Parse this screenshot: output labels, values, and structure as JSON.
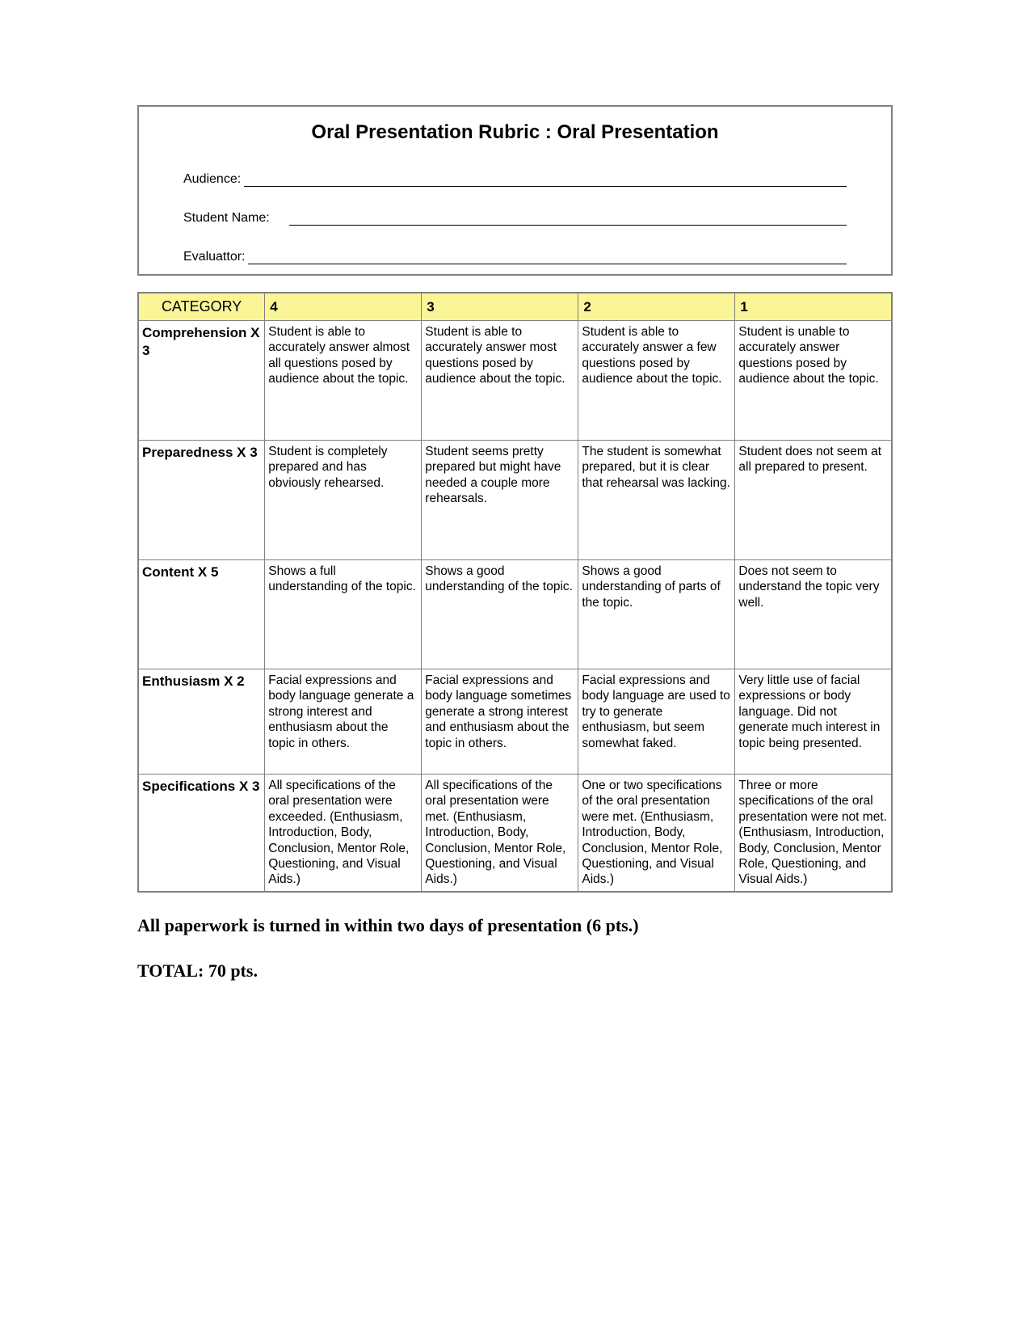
{
  "title": "Oral Presentation Rubric : Oral Presentation",
  "fields": {
    "audience": "Audience:",
    "studentName": "Student Name:",
    "evaluator": "Evaluattor:"
  },
  "table": {
    "headers": {
      "category": "CATEGORY",
      "c4": "4",
      "c3": "3",
      "c2": "2",
      "c1": "1"
    },
    "rows": [
      {
        "category": "Comprehension X 3",
        "c4": "Student is able to accurately answer almost all questions posed by audience about the topic.",
        "c3": "Student is able to accurately answer most questions posed by audience about the topic.",
        "c2": "Student is able to accurately answer a few questions posed by audience about the topic.",
        "c1": "Student is unable to accurately answer questions posed by audience  about the topic.",
        "rowClass": "row-tall"
      },
      {
        "category": "Preparedness X 3",
        "c4": "Student is completely prepared and has obviously rehearsed.",
        "c3": "Student seems pretty prepared but might have needed a couple more rehearsals.",
        "c2": "The student is somewhat prepared, but it is clear that rehearsal was lacking.",
        "c1": "Student does not seem at all prepared to present.",
        "rowClass": "row-tall"
      },
      {
        "category": "Content\nX 5",
        "c4": "Shows a full understanding of the topic.",
        "c3": "Shows a good understanding of the topic.",
        "c2": "Shows a good understanding of parts of the topic.",
        "c1": "Does not seem to understand the topic very well.",
        "rowClass": "row-med"
      },
      {
        "category": "Enthusiasm X 2",
        "c4": "Facial expressions and body language generate a strong interest and enthusiasm about the topic in others.",
        "c3": "Facial expressions and body language sometimes generate a strong interest and enthusiasm about the topic in others.",
        "c2": "Facial expressions and body language are used to try to generate enthusiasm, but seem somewhat faked.",
        "c1": "Very little use of facial expressions or body language. Did not generate much interest in topic being presented.",
        "rowClass": "row-short"
      },
      {
        "category": "Specifications X 3",
        "c4": "All specifications of the oral presentation were exceeded. (Enthusiasm, Introduction, Body, Conclusion, Mentor Role, Questioning, and Visual Aids.)",
        "c3": "All specifications of the oral presentation were met.\n(Enthusiasm, Introduction, Body, Conclusion, Mentor Role, Questioning, and Visual Aids.)",
        "c2": "One or two specifications of the oral presentation were met.\n(Enthusiasm, Introduction, Body, Conclusion, Mentor Role, Questioning, and Visual Aids.)",
        "c1": "Three or more specifications of the oral presentation were not met. (Enthusiasm, Introduction, Body, Conclusion, Mentor Role, Questioning, and Visual Aids.)",
        "rowClass": "row-spec"
      }
    ]
  },
  "footer": {
    "line1": "All paperwork is turned in within two days of presentation  (6 pts.)",
    "line2": "TOTAL:  70 pts."
  },
  "colors": {
    "headerBg": "#faf597",
    "border": "#808080",
    "text": "#000000",
    "background": "#ffffff"
  }
}
